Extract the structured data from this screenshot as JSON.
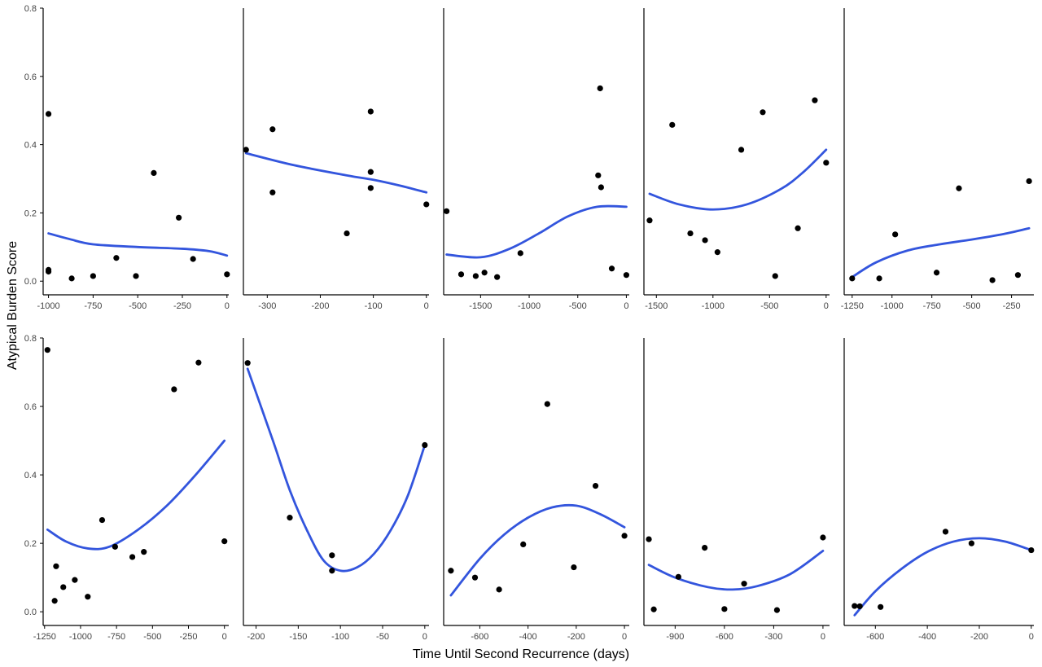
{
  "chart_data": {
    "type": "scatter",
    "xlabel": "Time Until Second Recurrence (days)",
    "ylabel": "Atypical Burden Score",
    "ylim": [
      0,
      0.8
    ],
    "yticks": [
      0,
      0.2,
      0.4,
      0.6,
      0.8
    ],
    "ytick_labels": [
      "0.0",
      "0.2",
      "0.4",
      "0.6",
      "0.8"
    ],
    "colors": {
      "points": "#000000",
      "fit": "#3355dd",
      "axis": "#000000",
      "ticks": "#444444"
    },
    "legend": "none",
    "grid": false,
    "panels": [
      {
        "xlim": [
          -1030,
          10
        ],
        "xticks": [
          -1000,
          -750,
          -500,
          -250,
          0
        ],
        "points": [
          [
            -1000,
            0.49
          ],
          [
            -1000,
            0.033
          ],
          [
            -1000,
            0.028
          ],
          [
            -870,
            0.008
          ],
          [
            -750,
            0.015
          ],
          [
            -620,
            0.068
          ],
          [
            -510,
            0.015
          ],
          [
            -410,
            0.317
          ],
          [
            -270,
            0.186
          ],
          [
            -190,
            0.065
          ],
          [
            0,
            0.02
          ]
        ],
        "fit": [
          [
            -1000,
            0.14
          ],
          [
            -880,
            0.123
          ],
          [
            -750,
            0.108
          ],
          [
            -500,
            0.1
          ],
          [
            -250,
            0.095
          ],
          [
            -100,
            0.088
          ],
          [
            0,
            0.075
          ]
        ]
      },
      {
        "xlim": [
          -345,
          5
        ],
        "xticks": [
          -300,
          -200,
          -100,
          0
        ],
        "points": [
          [
            -340,
            0.385
          ],
          [
            -290,
            0.445
          ],
          [
            -290,
            0.26
          ],
          [
            -150,
            0.14
          ],
          [
            -105,
            0.497
          ],
          [
            -105,
            0.32
          ],
          [
            -105,
            0.273
          ],
          [
            0,
            0.225
          ]
        ],
        "fit": [
          [
            -340,
            0.375
          ],
          [
            -250,
            0.34
          ],
          [
            -150,
            0.31
          ],
          [
            -100,
            0.297
          ],
          [
            -50,
            0.28
          ],
          [
            0,
            0.26
          ]
        ]
      },
      {
        "xlim": [
          -1880,
          30
        ],
        "xticks": [
          -1500,
          -1000,
          -500,
          0
        ],
        "points": [
          [
            -1850,
            0.205
          ],
          [
            -1700,
            0.02
          ],
          [
            -1550,
            0.015
          ],
          [
            -1460,
            0.025
          ],
          [
            -1330,
            0.012
          ],
          [
            -1090,
            0.082
          ],
          [
            -290,
            0.31
          ],
          [
            -270,
            0.565
          ],
          [
            -260,
            0.275
          ],
          [
            -150,
            0.037
          ],
          [
            0,
            0.018
          ]
        ],
        "fit": [
          [
            -1850,
            0.078
          ],
          [
            -1500,
            0.07
          ],
          [
            -1200,
            0.095
          ],
          [
            -900,
            0.14
          ],
          [
            -600,
            0.19
          ],
          [
            -300,
            0.218
          ],
          [
            0,
            0.218
          ]
        ]
      },
      {
        "xlim": [
          -1610,
          30
        ],
        "xticks": [
          -1500,
          -1000,
          -500,
          0
        ],
        "points": [
          [
            -1560,
            0.178
          ],
          [
            -1360,
            0.458
          ],
          [
            -1200,
            0.14
          ],
          [
            -1070,
            0.12
          ],
          [
            -960,
            0.085
          ],
          [
            -750,
            0.385
          ],
          [
            -560,
            0.495
          ],
          [
            -450,
            0.015
          ],
          [
            -250,
            0.155
          ],
          [
            -100,
            0.53
          ],
          [
            0,
            0.347
          ]
        ],
        "fit": [
          [
            -1560,
            0.256
          ],
          [
            -1300,
            0.225
          ],
          [
            -1000,
            0.21
          ],
          [
            -700,
            0.225
          ],
          [
            -400,
            0.27
          ],
          [
            -200,
            0.32
          ],
          [
            0,
            0.385
          ]
        ]
      },
      {
        "xlim": [
          -1300,
          -110
        ],
        "xticks": [
          -1250,
          -1000,
          -750,
          -500,
          -250
        ],
        "points": [
          [
            -1250,
            0.008
          ],
          [
            -1080,
            0.008
          ],
          [
            -980,
            0.137
          ],
          [
            -720,
            0.025
          ],
          [
            -580,
            0.272
          ],
          [
            -370,
            0.003
          ],
          [
            -210,
            0.018
          ],
          [
            -140,
            0.293
          ]
        ],
        "fit": [
          [
            -1250,
            0.012
          ],
          [
            -1100,
            0.055
          ],
          [
            -900,
            0.09
          ],
          [
            -700,
            0.108
          ],
          [
            -500,
            0.122
          ],
          [
            -300,
            0.138
          ],
          [
            -140,
            0.155
          ]
        ]
      },
      {
        "xlim": [
          -1260,
          30
        ],
        "xticks": [
          -1250,
          -1000,
          -750,
          -500,
          -250,
          0
        ],
        "points": [
          [
            -1230,
            0.765
          ],
          [
            -1180,
            0.032
          ],
          [
            -1170,
            0.133
          ],
          [
            -1120,
            0.072
          ],
          [
            -1040,
            0.093
          ],
          [
            -950,
            0.044
          ],
          [
            -850,
            0.268
          ],
          [
            -760,
            0.19
          ],
          [
            -640,
            0.16
          ],
          [
            -560,
            0.175
          ],
          [
            -350,
            0.65
          ],
          [
            -180,
            0.728
          ],
          [
            0,
            0.206
          ]
        ],
        "fit": [
          [
            -1230,
            0.24
          ],
          [
            -1100,
            0.205
          ],
          [
            -950,
            0.185
          ],
          [
            -800,
            0.19
          ],
          [
            -600,
            0.24
          ],
          [
            -400,
            0.31
          ],
          [
            -200,
            0.4
          ],
          [
            0,
            0.5
          ]
        ]
      },
      {
        "xlim": [
          -215,
          5
        ],
        "xticks": [
          -200,
          -150,
          -100,
          -50,
          0
        ],
        "points": [
          [
            -210,
            0.727
          ],
          [
            -160,
            0.275
          ],
          [
            -110,
            0.165
          ],
          [
            -110,
            0.12
          ],
          [
            0,
            0.487
          ]
        ],
        "fit": [
          [
            -210,
            0.71
          ],
          [
            -180,
            0.5
          ],
          [
            -160,
            0.355
          ],
          [
            -140,
            0.24
          ],
          [
            -120,
            0.15
          ],
          [
            -100,
            0.12
          ],
          [
            -80,
            0.13
          ],
          [
            -60,
            0.17
          ],
          [
            -40,
            0.24
          ],
          [
            -20,
            0.34
          ],
          [
            0,
            0.487
          ]
        ]
      },
      {
        "xlim": [
          -750,
          20
        ],
        "xticks": [
          -600,
          -400,
          -200,
          0
        ],
        "points": [
          [
            -720,
            0.12
          ],
          [
            -620,
            0.1
          ],
          [
            -520,
            0.065
          ],
          [
            -420,
            0.197
          ],
          [
            -320,
            0.607
          ],
          [
            -210,
            0.13
          ],
          [
            -120,
            0.368
          ],
          [
            0,
            0.222
          ]
        ],
        "fit": [
          [
            -720,
            0.048
          ],
          [
            -600,
            0.155
          ],
          [
            -500,
            0.225
          ],
          [
            -400,
            0.275
          ],
          [
            -300,
            0.305
          ],
          [
            -200,
            0.31
          ],
          [
            -100,
            0.285
          ],
          [
            0,
            0.247
          ]
        ]
      },
      {
        "xlim": [
          -1090,
          40
        ],
        "xticks": [
          -900,
          -600,
          -300,
          0
        ],
        "points": [
          [
            -1060,
            0.212
          ],
          [
            -1030,
            0.007
          ],
          [
            -880,
            0.102
          ],
          [
            -720,
            0.187
          ],
          [
            -600,
            0.008
          ],
          [
            -480,
            0.082
          ],
          [
            -280,
            0.005
          ],
          [
            0,
            0.217
          ]
        ],
        "fit": [
          [
            -1060,
            0.137
          ],
          [
            -900,
            0.1
          ],
          [
            -700,
            0.072
          ],
          [
            -550,
            0.065
          ],
          [
            -400,
            0.075
          ],
          [
            -200,
            0.11
          ],
          [
            0,
            0.178
          ]
        ]
      },
      {
        "xlim": [
          -720,
          10
        ],
        "xticks": [
          -600,
          -400,
          -200,
          0
        ],
        "points": [
          [
            -680,
            0.017
          ],
          [
            -660,
            0.016
          ],
          [
            -580,
            0.014
          ],
          [
            -330,
            0.234
          ],
          [
            -230,
            0.2
          ],
          [
            0,
            0.18
          ]
        ],
        "fit": [
          [
            -680,
            -0.01
          ],
          [
            -600,
            0.06
          ],
          [
            -500,
            0.125
          ],
          [
            -400,
            0.175
          ],
          [
            -300,
            0.205
          ],
          [
            -200,
            0.215
          ],
          [
            -100,
            0.205
          ],
          [
            0,
            0.18
          ]
        ]
      }
    ]
  }
}
